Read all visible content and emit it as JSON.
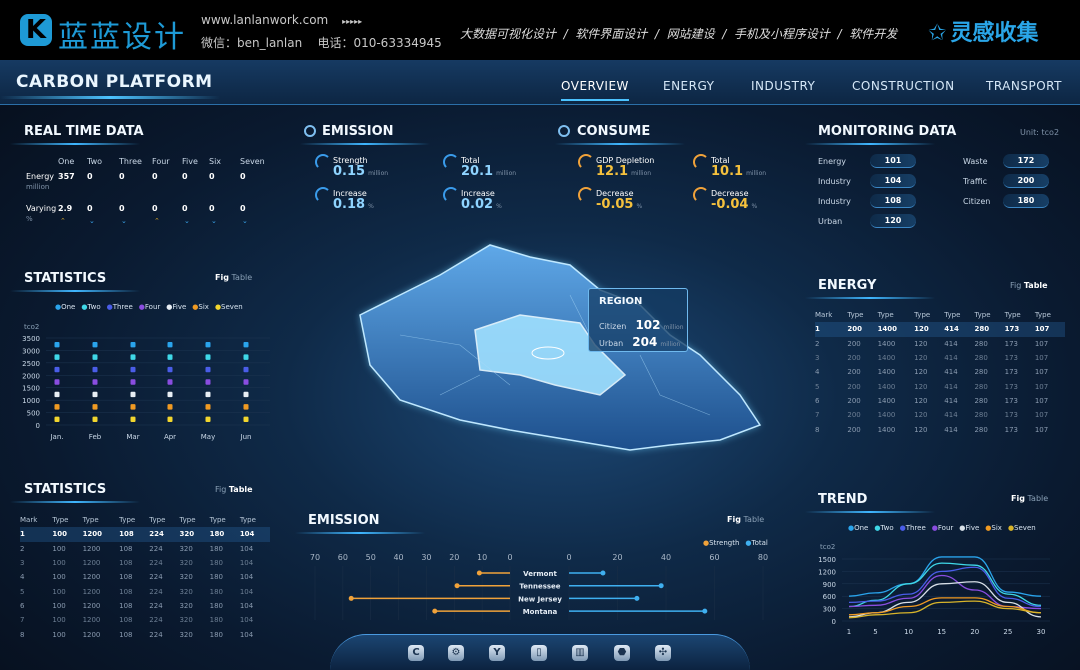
{
  "banner": {
    "logo_text": "蓝蓝设计",
    "logo_icon": "k-mark-icon",
    "website": "www.lanlanwork.com",
    "arrows": "▸▸▸▸▸",
    "contact": "微信：ben_lanlan    电话：010-63334945",
    "services": "大数据可视化设计  /  软件界面设计  /  网站建设  /  手机及小程序设计  /  软件开发",
    "brand2": "灵感收集",
    "brand2_icon": "star-icon"
  },
  "header": {
    "title": "CARBON PLATFORM",
    "nav": [
      "OVERVIEW",
      "ENERGY",
      "INDUSTRY",
      "CONSTRUCTION",
      "TRANSPORT"
    ],
    "active": "OVERVIEW"
  },
  "realtime": {
    "title": "REAL TIME DATA",
    "columns": [
      "One",
      "Two",
      "Three",
      "Four",
      "Five",
      "Six",
      "Seven"
    ],
    "energy": {
      "label": "Energy",
      "unit": "million",
      "values": [
        "357",
        "0",
        "0",
        "0",
        "0",
        "0",
        "0"
      ]
    },
    "varying": {
      "label": "Varying",
      "unit": "%",
      "values": [
        "2.9",
        "0",
        "0",
        "0",
        "0",
        "0",
        "0"
      ],
      "trend": [
        "up",
        "down",
        "down",
        "up",
        "down",
        "down",
        "down"
      ]
    }
  },
  "stats_chart": {
    "title": "STATISTICS",
    "toggle": [
      "Fig",
      "Table"
    ],
    "active": "Fig"
  },
  "stats_table": {
    "title": "STATISTICS",
    "toggle": [
      "Fig",
      "Table"
    ],
    "active": "Table",
    "headers": [
      "Mark",
      "Type",
      "Type",
      "Type",
      "Type",
      "Type",
      "Type",
      "Type"
    ],
    "rows": [
      [
        "1",
        "100",
        "1200",
        "108",
        "224",
        "320",
        "180",
        "104"
      ],
      [
        "2",
        "100",
        "1200",
        "108",
        "224",
        "320",
        "180",
        "104"
      ],
      [
        "3",
        "100",
        "1200",
        "108",
        "224",
        "320",
        "180",
        "104"
      ],
      [
        "4",
        "100",
        "1200",
        "108",
        "224",
        "320",
        "180",
        "104"
      ],
      [
        "5",
        "100",
        "1200",
        "108",
        "224",
        "320",
        "180",
        "104"
      ],
      [
        "6",
        "100",
        "1200",
        "108",
        "224",
        "320",
        "180",
        "104"
      ],
      [
        "7",
        "100",
        "1200",
        "108",
        "224",
        "320",
        "180",
        "104"
      ],
      [
        "8",
        "100",
        "1200",
        "108",
        "224",
        "320",
        "180",
        "104"
      ]
    ]
  },
  "emission": {
    "title": "EMISSION",
    "items": [
      {
        "label": "Strength",
        "value": "0.15",
        "unit": "million"
      },
      {
        "label": "Total",
        "value": "20.1",
        "unit": "million"
      },
      {
        "label": "Increase",
        "value": "0.18",
        "unit": "%"
      },
      {
        "label": "Increase",
        "value": "0.02",
        "unit": "%"
      }
    ]
  },
  "consume": {
    "title": "CONSUME",
    "items": [
      {
        "label": "GDP Depletion",
        "value": "12.1",
        "unit": "million"
      },
      {
        "label": "Total",
        "value": "10.1",
        "unit": "million"
      },
      {
        "label": "Decrease",
        "value": "-0.05",
        "unit": "%"
      },
      {
        "label": "Decrease",
        "value": "-0.04",
        "unit": "%"
      }
    ]
  },
  "region": {
    "title": "REGION",
    "rows": [
      {
        "label": "Citizen",
        "value": "102",
        "unit": "million"
      },
      {
        "label": "Urban",
        "value": "204",
        "unit": "million"
      }
    ]
  },
  "monitoring": {
    "title": "MONITORING DATA",
    "unit": "Unit: tco2",
    "left": [
      {
        "label": "Energy",
        "value": "101"
      },
      {
        "label": "Industry",
        "value": "104"
      },
      {
        "label": "Industry",
        "value": "108"
      },
      {
        "label": "Urban",
        "value": "120"
      }
    ],
    "right": [
      {
        "label": "Waste",
        "value": "172"
      },
      {
        "label": "Traffic",
        "value": "200"
      },
      {
        "label": "Citizen",
        "value": "180"
      }
    ]
  },
  "energy_table": {
    "title": "ENERGY",
    "toggle": [
      "Fig",
      "Table"
    ],
    "active": "Table",
    "headers": [
      "Mark",
      "Type",
      "Type",
      "Type",
      "Type",
      "Type",
      "Type",
      "Type"
    ],
    "rows": [
      [
        "1",
        "200",
        "1400",
        "120",
        "414",
        "280",
        "173",
        "107"
      ],
      [
        "2",
        "200",
        "1400",
        "120",
        "414",
        "280",
        "173",
        "107"
      ],
      [
        "3",
        "200",
        "1400",
        "120",
        "414",
        "280",
        "173",
        "107"
      ],
      [
        "4",
        "200",
        "1400",
        "120",
        "414",
        "280",
        "173",
        "107"
      ],
      [
        "5",
        "200",
        "1400",
        "120",
        "414",
        "280",
        "173",
        "107"
      ],
      [
        "6",
        "200",
        "1400",
        "120",
        "414",
        "280",
        "173",
        "107"
      ],
      [
        "7",
        "200",
        "1400",
        "120",
        "414",
        "280",
        "173",
        "107"
      ],
      [
        "8",
        "200",
        "1400",
        "120",
        "414",
        "280",
        "173",
        "107"
      ]
    ]
  },
  "trend": {
    "title": "TREND",
    "toggle": [
      "Fig",
      "Table"
    ],
    "active": "Fig"
  },
  "emission_chart": {
    "title": "EMISSION",
    "toggle": [
      "Fig",
      "Table"
    ],
    "active": "Fig"
  },
  "dock_icons": [
    "c-icon",
    "gear-icon",
    "y-icon",
    "building-icon",
    "factory-icon",
    "hexagon-icon",
    "grid-icon"
  ],
  "colors": {
    "accent": "#3fb6ff",
    "gold": "#f5c13d",
    "bg": "#0a1a30"
  },
  "chart_data": [
    {
      "type": "bar",
      "stacked": true,
      "categories": [
        "Jan.",
        "Feb",
        "Mar",
        "Apr",
        "May",
        "Jun"
      ],
      "ylabel": "tco2",
      "ylim": [
        0,
        3500
      ],
      "yticks": [
        0,
        500,
        1000,
        1500,
        2000,
        2500,
        3000,
        3500
      ],
      "legend": "top",
      "series": [
        {
          "name": "Seven",
          "color": "#f2d62e",
          "values": [
            500,
            500,
            500,
            500,
            500,
            500
          ]
        },
        {
          "name": "Six",
          "color": "#f09a22",
          "values": [
            500,
            500,
            500,
            500,
            500,
            500
          ]
        },
        {
          "name": "Five",
          "color": "#e8eef4",
          "values": [
            500,
            500,
            500,
            500,
            500,
            500
          ]
        },
        {
          "name": "Four",
          "color": "#8a4de0",
          "values": [
            500,
            500,
            500,
            500,
            500,
            500
          ]
        },
        {
          "name": "Three",
          "color": "#4a5de8",
          "values": [
            500,
            500,
            500,
            500,
            500,
            500
          ]
        },
        {
          "name": "Two",
          "color": "#3fd8e8",
          "values": [
            500,
            500,
            500,
            500,
            500,
            500
          ]
        },
        {
          "name": "One",
          "color": "#2aa4ec",
          "values": [
            500,
            500,
            500,
            500,
            500,
            500
          ]
        }
      ],
      "legend_order": [
        "One",
        "Two",
        "Three",
        "Four",
        "Five",
        "Six",
        "Seven"
      ]
    },
    {
      "type": "bar",
      "orientation": "horizontal",
      "diverging": true,
      "categories": [
        "Vermont",
        "Tennessee",
        "New Jersey",
        "Montana"
      ],
      "legend": "top-right",
      "left_axis": {
        "ticks": [
          70,
          60,
          50,
          40,
          30,
          20,
          10,
          0
        ],
        "range": [
          0,
          70
        ]
      },
      "right_axis": {
        "ticks": [
          0,
          20,
          40,
          60,
          80
        ],
        "range": [
          0,
          80
        ]
      },
      "series": [
        {
          "name": "Strength",
          "color": "#f0a23a",
          "side": "left",
          "values": [
            11,
            19,
            57,
            27
          ]
        },
        {
          "name": "Total",
          "color": "#3fb0f0",
          "side": "right",
          "values": [
            14,
            38,
            28,
            56
          ]
        }
      ]
    },
    {
      "type": "line",
      "x": [
        1,
        5,
        10,
        15,
        20,
        25,
        30
      ],
      "xticks": [
        1,
        5,
        10,
        15,
        20,
        25,
        30
      ],
      "ylabel": "tco2",
      "ylim": [
        0,
        1650
      ],
      "yticks": [
        0,
        300,
        600,
        900,
        1200,
        1500
      ],
      "legend": "top",
      "series": [
        {
          "name": "One",
          "color": "#2aa4ec",
          "values": [
            600,
            680,
            900,
            1550,
            1550,
            700,
            600
          ]
        },
        {
          "name": "Two",
          "color": "#3fd8e8",
          "values": [
            350,
            500,
            900,
            1400,
            1350,
            650,
            380
          ]
        },
        {
          "name": "Three",
          "color": "#4a5de8",
          "values": [
            450,
            480,
            650,
            1200,
            1300,
            550,
            350
          ]
        },
        {
          "name": "Four",
          "color": "#8a4de0",
          "values": [
            350,
            380,
            550,
            1100,
            750,
            350,
            300
          ]
        },
        {
          "name": "Five",
          "color": "#d8e0e8",
          "values": [
            100,
            200,
            450,
            900,
            950,
            450,
            100
          ]
        },
        {
          "name": "Six",
          "color": "#f09a22",
          "values": [
            150,
            200,
            350,
            560,
            560,
            350,
            200
          ]
        },
        {
          "name": "Seven",
          "color": "#d8b42a",
          "values": [
            80,
            150,
            200,
            450,
            480,
            300,
            200
          ]
        }
      ]
    }
  ]
}
